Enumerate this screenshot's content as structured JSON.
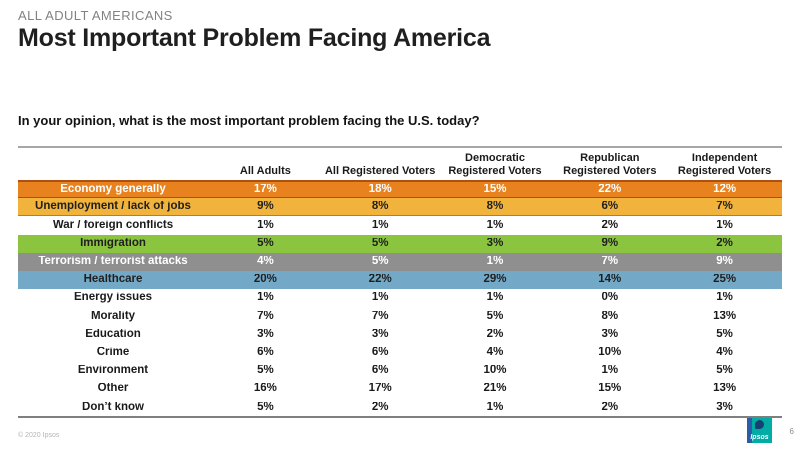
{
  "header": {
    "eyebrow": "ALL ADULT AMERICANS",
    "title": "Most Important Problem Facing America"
  },
  "question": "In your opinion, what is the most important problem facing the U.S. today?",
  "chart_data": {
    "type": "table",
    "title": "Most Important Problem Facing America",
    "subtitle": "ALL ADULT AMERICANS",
    "question": "In your opinion, what is the most important problem facing the U.S. today?",
    "columns": [
      "",
      "All Adults",
      "All Registered Voters",
      "Democratic Registered Voters",
      "Republican Registered Voters",
      "Independent Registered Voters"
    ],
    "rows": [
      {
        "label": "Economy generally",
        "values": [
          "17%",
          "18%",
          "15%",
          "22%",
          "12%"
        ],
        "bg": "#E8821E",
        "text": "#FFFFFF",
        "border_top": "#B05010",
        "border_bottom": "#B05010"
      },
      {
        "label": "Unemployment / lack of jobs",
        "values": [
          "9%",
          "8%",
          "8%",
          "6%",
          "7%"
        ],
        "bg": "#F1B33C",
        "text": "#1F1F1F",
        "border_bottom": "#C07C18"
      },
      {
        "label": "War / foreign conflicts",
        "values": [
          "1%",
          "1%",
          "1%",
          "2%",
          "1%"
        ],
        "bg": "#FFFFFF",
        "text": "#1A1A1A"
      },
      {
        "label": "Immigration",
        "values": [
          "5%",
          "5%",
          "3%",
          "9%",
          "2%"
        ],
        "bg": "#8BC540",
        "text": "#1F1F1F"
      },
      {
        "label": "Terrorism / terrorist attacks",
        "values": [
          "4%",
          "5%",
          "1%",
          "7%",
          "9%"
        ],
        "bg": "#8F8F8F",
        "text": "#FFFFFF"
      },
      {
        "label": "Healthcare",
        "values": [
          "20%",
          "22%",
          "29%",
          "14%",
          "25%"
        ],
        "bg": "#73A9C7",
        "text": "#1F1F1F"
      },
      {
        "label": "Energy issues",
        "values": [
          "1%",
          "1%",
          "1%",
          "0%",
          "1%"
        ],
        "bg": "#FFFFFF",
        "text": "#1A1A1A"
      },
      {
        "label": "Morality",
        "values": [
          "7%",
          "7%",
          "5%",
          "8%",
          "13%"
        ],
        "bg": "#FFFFFF",
        "text": "#1A1A1A"
      },
      {
        "label": "Education",
        "values": [
          "3%",
          "3%",
          "2%",
          "3%",
          "5%"
        ],
        "bg": "#FFFFFF",
        "text": "#1A1A1A"
      },
      {
        "label": "Crime",
        "values": [
          "6%",
          "6%",
          "4%",
          "10%",
          "4%"
        ],
        "bg": "#FFFFFF",
        "text": "#1A1A1A"
      },
      {
        "label": "Environment",
        "values": [
          "5%",
          "6%",
          "10%",
          "1%",
          "5%"
        ],
        "bg": "#FFFFFF",
        "text": "#1A1A1A"
      },
      {
        "label": "Other",
        "values": [
          "16%",
          "17%",
          "21%",
          "15%",
          "13%"
        ],
        "bg": "#FFFFFF",
        "text": "#1A1A1A"
      },
      {
        "label": "Don’t know",
        "values": [
          "5%",
          "2%",
          "1%",
          "2%",
          "3%"
        ],
        "bg": "#FFFFFF",
        "text": "#1A1A1A"
      }
    ]
  },
  "footer": {
    "copyright": "© 2020 Ipsos",
    "page": "6",
    "logo": {
      "text": "Ipsos",
      "bg": "#00ACA3",
      "stripe": "#2A5CA8",
      "dot": "#173F73"
    }
  }
}
